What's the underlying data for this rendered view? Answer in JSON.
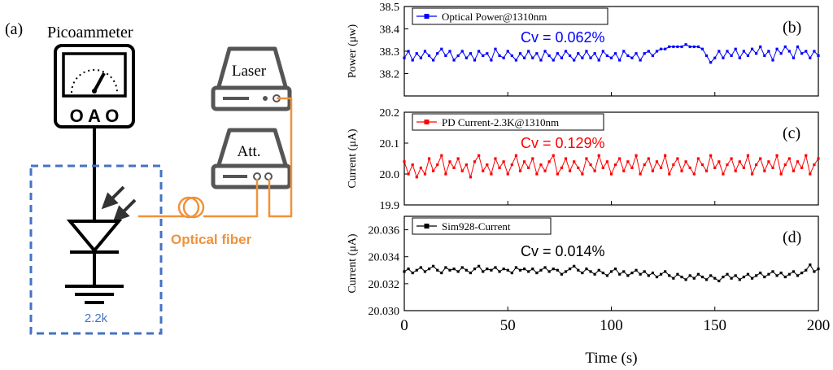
{
  "schematic": {
    "panel_label": "(a)",
    "picoammeter_label": "Picoammeter",
    "meter_face_text": "O A O",
    "laser_label": "Laser",
    "attenuator_label": "Att.",
    "fiber_label": "Optical fiber",
    "resistor_label": "2.2k",
    "colors": {
      "fiber": "#F0923A",
      "box": "#4472C4",
      "device": "#555555"
    }
  },
  "chart_data": [
    {
      "type": "line",
      "panel_label": "(b)",
      "ylabel": "Power (μw)",
      "ylim": [
        38.1,
        38.5
      ],
      "yticks": [
        "38.2",
        "38.3",
        "38.4",
        "38.5"
      ],
      "xlim": [
        0,
        200
      ],
      "grid": false,
      "legend_position": "top-left",
      "annotation": "Cv = 0.062%",
      "color": "#0000FF",
      "series": [
        {
          "name": "Optical Power@1310nm",
          "x": [
            0,
            2,
            4,
            6,
            8,
            10,
            12,
            14,
            16,
            18,
            20,
            22,
            24,
            26,
            28,
            30,
            32,
            34,
            36,
            38,
            40,
            42,
            44,
            46,
            48,
            50,
            52,
            54,
            56,
            58,
            60,
            62,
            64,
            66,
            68,
            70,
            72,
            74,
            76,
            78,
            80,
            82,
            84,
            86,
            88,
            90,
            92,
            94,
            96,
            98,
            100,
            102,
            104,
            106,
            108,
            110,
            112,
            114,
            116,
            118,
            120,
            122,
            124,
            126,
            128,
            130,
            132,
            134,
            136,
            138,
            140,
            142,
            144,
            146,
            148,
            150,
            152,
            154,
            156,
            158,
            160,
            162,
            164,
            166,
            168,
            170,
            172,
            174,
            176,
            178,
            180,
            182,
            184,
            186,
            188,
            190,
            192,
            194,
            196,
            198,
            200
          ],
          "values": [
            38.27,
            38.3,
            38.26,
            38.29,
            38.27,
            38.3,
            38.28,
            38.26,
            38.29,
            38.31,
            38.28,
            38.3,
            38.26,
            38.28,
            38.3,
            38.27,
            38.29,
            38.26,
            38.3,
            38.28,
            38.29,
            38.26,
            38.31,
            38.28,
            38.27,
            38.3,
            38.28,
            38.26,
            38.29,
            38.27,
            38.3,
            38.27,
            38.29,
            38.26,
            38.3,
            38.28,
            38.26,
            38.29,
            38.27,
            38.3,
            38.28,
            38.26,
            38.29,
            38.27,
            38.3,
            38.27,
            38.29,
            38.26,
            38.3,
            38.28,
            38.27,
            38.29,
            38.26,
            38.3,
            38.28,
            38.27,
            38.29,
            38.26,
            38.29,
            38.3,
            38.28,
            38.3,
            38.31,
            38.31,
            38.32,
            38.32,
            38.32,
            38.32,
            38.33,
            38.32,
            38.32,
            38.32,
            38.31,
            38.28,
            38.25,
            38.27,
            38.3,
            38.27,
            38.3,
            38.28,
            38.31,
            38.27,
            38.3,
            38.28,
            38.31,
            38.29,
            38.32,
            38.28,
            38.3,
            38.26,
            38.31,
            38.29,
            38.32,
            38.3,
            38.27,
            38.32,
            38.29,
            38.3,
            38.27,
            38.3,
            38.28
          ]
        }
      ]
    },
    {
      "type": "line",
      "panel_label": "(c)",
      "ylabel": "Current (μA)",
      "ylim": [
        19.9,
        20.2
      ],
      "yticks": [
        "19.9",
        "20.0",
        "20.1",
        "20.2"
      ],
      "xlim": [
        0,
        200
      ],
      "grid": false,
      "legend_position": "top-left",
      "annotation": "Cv = 0.129%",
      "color": "#FF0000",
      "series": [
        {
          "name": "PD Current-2.3K@1310nm",
          "x": [
            0,
            2,
            4,
            6,
            8,
            10,
            12,
            14,
            16,
            18,
            20,
            22,
            24,
            26,
            28,
            30,
            32,
            34,
            36,
            38,
            40,
            42,
            44,
            46,
            48,
            50,
            52,
            54,
            56,
            58,
            60,
            62,
            64,
            66,
            68,
            70,
            72,
            74,
            76,
            78,
            80,
            82,
            84,
            86,
            88,
            90,
            92,
            94,
            96,
            98,
            100,
            102,
            104,
            106,
            108,
            110,
            112,
            114,
            116,
            118,
            120,
            122,
            124,
            126,
            128,
            130,
            132,
            134,
            136,
            138,
            140,
            142,
            144,
            146,
            148,
            150,
            152,
            154,
            156,
            158,
            160,
            162,
            164,
            166,
            168,
            170,
            172,
            174,
            176,
            178,
            180,
            182,
            184,
            186,
            188,
            190,
            192,
            194,
            196,
            198,
            200
          ],
          "values": [
            20.04,
            20.0,
            20.03,
            19.99,
            20.02,
            20.0,
            20.05,
            20.01,
            20.03,
            20.06,
            20.0,
            20.04,
            20.02,
            20.05,
            20.01,
            20.03,
            19.99,
            20.04,
            20.06,
            20.01,
            20.03,
            20.0,
            20.05,
            20.02,
            20.04,
            20.0,
            20.03,
            20.06,
            20.01,
            20.04,
            20.02,
            20.05,
            20.0,
            20.03,
            20.01,
            20.04,
            20.06,
            20.0,
            20.02,
            20.05,
            20.01,
            20.04,
            20.02,
            20.0,
            20.05,
            20.03,
            20.01,
            20.06,
            20.02,
            20.04,
            20.0,
            20.03,
            20.05,
            20.01,
            20.04,
            20.02,
            20.06,
            20.0,
            20.03,
            20.05,
            20.01,
            20.04,
            20.02,
            20.06,
            20.0,
            20.03,
            20.05,
            20.01,
            20.04,
            20.02,
            20.0,
            20.05,
            20.03,
            20.01,
            20.06,
            20.02,
            20.04,
            20.0,
            20.03,
            20.05,
            20.01,
            20.04,
            20.02,
            20.06,
            20.0,
            20.03,
            20.05,
            20.01,
            20.04,
            20.02,
            20.06,
            20.0,
            20.03,
            20.05,
            20.01,
            20.04,
            20.02,
            20.06,
            20.0,
            20.03,
            20.05
          ]
        }
      ]
    },
    {
      "type": "line",
      "panel_label": "(d)",
      "ylabel": "Current (μA)",
      "xlabel": "Time (s)",
      "ylim": [
        20.03,
        20.037
      ],
      "yticks": [
        "20.030",
        "20.032",
        "20.034",
        "20.036"
      ],
      "xlim": [
        0,
        200
      ],
      "xticks": [
        "0",
        "50",
        "100",
        "150",
        "200"
      ],
      "grid": false,
      "legend_position": "top-left",
      "annotation": "Cv = 0.014%",
      "color": "#000000",
      "series": [
        {
          "name": "Sim928-Current",
          "x": [
            0,
            2,
            4,
            6,
            8,
            10,
            12,
            14,
            16,
            18,
            20,
            22,
            24,
            26,
            28,
            30,
            32,
            34,
            36,
            38,
            40,
            42,
            44,
            46,
            48,
            50,
            52,
            54,
            56,
            58,
            60,
            62,
            64,
            66,
            68,
            70,
            72,
            74,
            76,
            78,
            80,
            82,
            84,
            86,
            88,
            90,
            92,
            94,
            96,
            98,
            100,
            102,
            104,
            106,
            108,
            110,
            112,
            114,
            116,
            118,
            120,
            122,
            124,
            126,
            128,
            130,
            132,
            134,
            136,
            138,
            140,
            142,
            144,
            146,
            148,
            150,
            152,
            154,
            156,
            158,
            160,
            162,
            164,
            166,
            168,
            170,
            172,
            174,
            176,
            178,
            180,
            182,
            184,
            186,
            188,
            190,
            192,
            194,
            196,
            198,
            200
          ],
          "values": [
            20.0329,
            20.0331,
            20.0328,
            20.033,
            20.0332,
            20.0329,
            20.0331,
            20.0333,
            20.033,
            20.0328,
            20.0332,
            20.033,
            20.0331,
            20.0329,
            20.0332,
            20.033,
            20.0328,
            20.0331,
            20.0333,
            20.0329,
            20.0331,
            20.033,
            20.0332,
            20.0329,
            20.0331,
            20.033,
            20.0328,
            20.0332,
            20.033,
            20.0331,
            20.0329,
            20.0331,
            20.0328,
            20.033,
            20.0332,
            20.0329,
            20.0331,
            20.033,
            20.0327,
            20.0329,
            20.0331,
            20.0333,
            20.033,
            20.0328,
            20.0331,
            20.0329,
            20.0327,
            20.033,
            20.0328,
            20.0326,
            20.0329,
            20.0331,
            20.0327,
            20.0329,
            20.0326,
            20.0328,
            20.033,
            20.0327,
            20.0329,
            20.0326,
            20.0328,
            20.0325,
            20.0327,
            20.0329,
            20.0326,
            20.0324,
            20.0327,
            20.0325,
            20.0323,
            20.0326,
            20.0324,
            20.0327,
            20.0325,
            20.0323,
            20.0326,
            20.0324,
            20.0322,
            20.0325,
            20.0327,
            20.0324,
            20.0326,
            20.0323,
            20.0325,
            20.0327,
            20.0324,
            20.0326,
            20.0328,
            20.0325,
            20.0327,
            20.0329,
            20.0326,
            20.0328,
            20.0325,
            20.0327,
            20.0329,
            20.0326,
            20.0328,
            20.033,
            20.0334,
            20.0329,
            20.0331
          ]
        }
      ]
    }
  ]
}
